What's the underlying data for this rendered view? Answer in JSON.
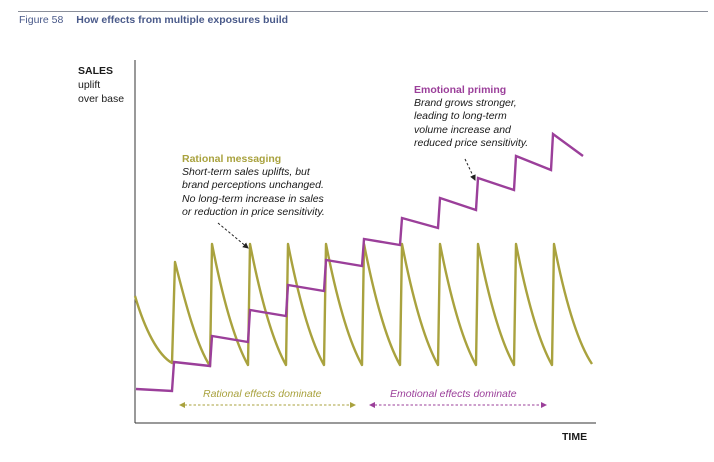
{
  "figure": {
    "number": "Figure 58",
    "title": "How effects from multiple exposures build"
  },
  "axes": {
    "y_label_main": "SALES",
    "y_label_sub": "uplift\nover base",
    "x_label": "TIME"
  },
  "annotations": {
    "rational": {
      "heading": "Rational messaging",
      "body": "Short-term sales uplifts, but\nbrand perceptions unchanged.\nNo long-term increase in sales\nor reduction in price sensitivity."
    },
    "emotional": {
      "heading": "Emotional priming",
      "body": "Brand grows stronger,\nleading to long-term\nvolume increase and\nreduced price sensitivity."
    }
  },
  "phases": {
    "rational": "Rational effects dominate",
    "emotional": "Emotional effects dominate"
  },
  "colors": {
    "rational": "#a9a23e",
    "emotional": "#9b3f9a",
    "axis": "#333333",
    "title": "#4a5a8a"
  }
}
